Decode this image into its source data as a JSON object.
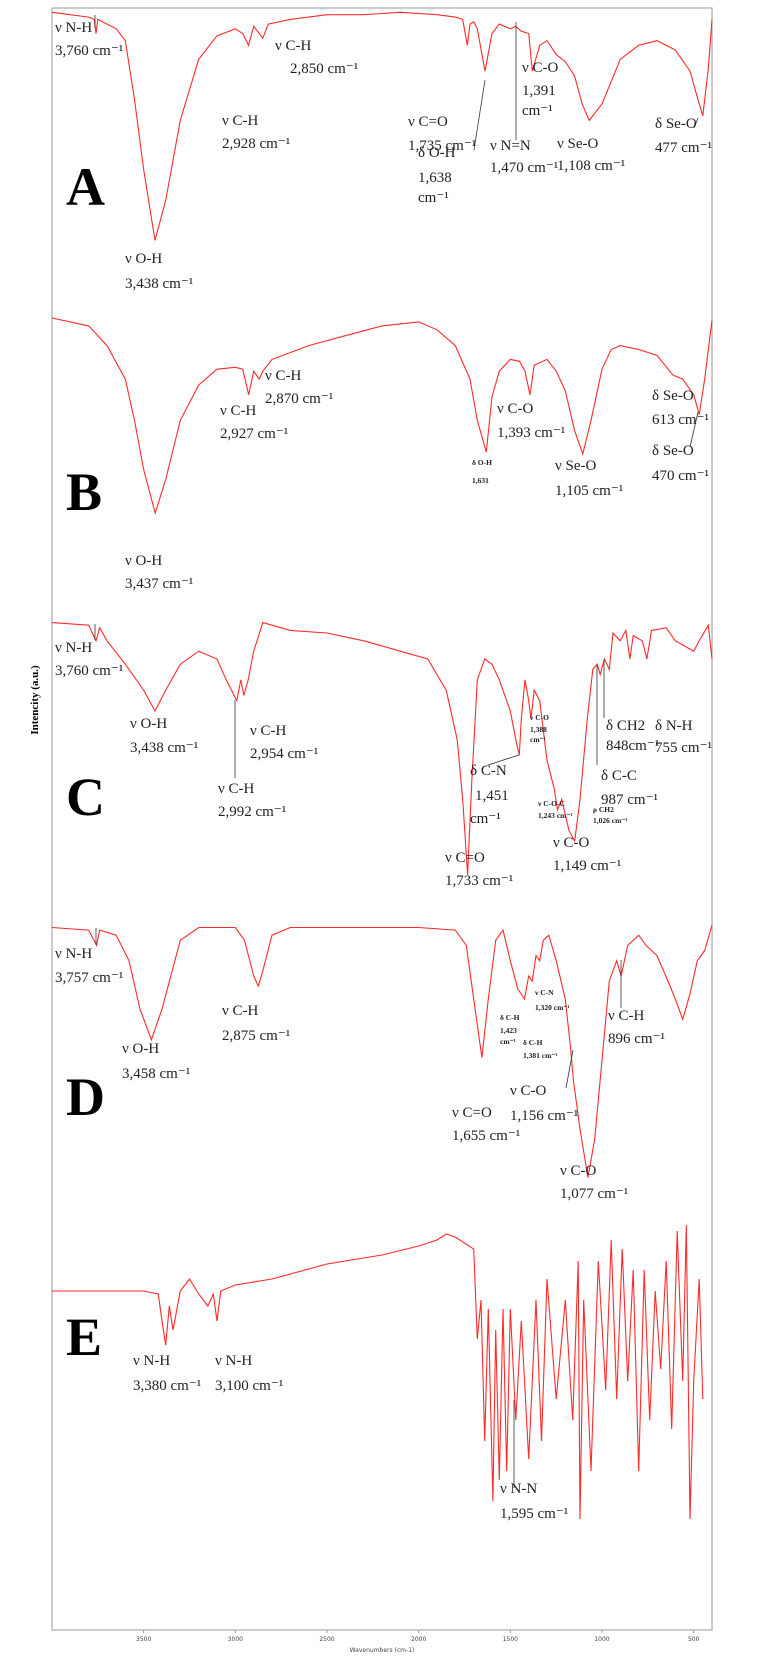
{
  "chart_data": {
    "type": "line",
    "xlabel": "Wavenumbers (cm-1)",
    "ylabel": "Intencity (a.u.)",
    "xlim": [
      4000,
      400
    ],
    "xticks": [
      3500,
      3000,
      2500,
      2000,
      1500,
      1000,
      500
    ],
    "ylim": [
      0,
      100
    ],
    "series": [
      {
        "name": "A",
        "color": "#ff2a2a",
        "x": [
          4000,
          3800,
          3770,
          3760,
          3750,
          3650,
          3600,
          3550,
          3500,
          3438,
          3380,
          3300,
          3200,
          3100,
          3000,
          2960,
          2928,
          2900,
          2870,
          2850,
          2820,
          2700,
          2500,
          2300,
          2100,
          1900,
          1800,
          1760,
          1735,
          1720,
          1700,
          1680,
          1638,
          1600,
          1560,
          1500,
          1470,
          1440,
          1400,
          1391,
          1380,
          1340,
          1300,
          1250,
          1200,
          1150,
          1108,
          1070,
          1000,
          900,
          800,
          700,
          600,
          520,
          477,
          450,
          420,
          400
        ],
        "values": [
          99,
          97,
          96,
          90,
          96,
          92,
          87,
          62,
          32,
          2,
          19,
          53,
          79,
          89,
          92,
          90,
          85,
          93,
          90,
          88,
          94,
          96,
          98,
          98,
          99,
          98,
          97,
          96,
          85,
          94,
          95,
          92,
          74,
          90,
          94,
          92,
          93,
          91,
          90,
          83,
          74,
          85,
          87,
          81,
          78,
          72,
          60,
          53,
          60,
          79,
          85,
          87,
          83,
          74,
          62,
          55,
          75,
          96
        ],
        "annotations": [
          [
            "ν N-H",
            "3,760 cm⁻¹"
          ],
          [
            "ν O-H",
            "3,438 cm⁻¹"
          ],
          [
            "ν C-H",
            "2,928 cm⁻¹"
          ],
          [
            "ν C-H",
            "2,850 cm⁻¹"
          ],
          [
            "ν C=O",
            "1,735 cm⁻¹"
          ],
          [
            "δ O-H",
            "1,638",
            "cm⁻¹"
          ],
          [
            "ν N=N",
            "1,470 cm⁻¹"
          ],
          [
            "ν C-O",
            "1,391",
            "cm⁻¹"
          ],
          [
            "ν Se-O",
            "1,108 cm⁻¹"
          ],
          [
            "δ Se-O",
            "477 cm⁻¹"
          ]
        ]
      },
      {
        "name": "B",
        "color": "#ff2a2a",
        "x": [
          4000,
          3800,
          3700,
          3600,
          3550,
          3500,
          3437,
          3380,
          3300,
          3200,
          3100,
          3000,
          2960,
          2927,
          2900,
          2870,
          2850,
          2800,
          2600,
          2400,
          2200,
          2000,
          1900,
          1800,
          1720,
          1680,
          1631,
          1600,
          1560,
          1500,
          1450,
          1420,
          1393,
          1370,
          1300,
          1250,
          1200,
          1150,
          1105,
          1060,
          1000,
          950,
          900,
          800,
          700,
          613,
          560,
          500,
          470,
          440,
          400
        ],
        "values": [
          100,
          96,
          86,
          69,
          48,
          23,
          1,
          18,
          48,
          66,
          74,
          75,
          74,
          61,
          73,
          69,
          73,
          79,
          86,
          91,
          96,
          98,
          94,
          86,
          69,
          48,
          32,
          60,
          73,
          79,
          78,
          73,
          61,
          76,
          79,
          73,
          63,
          43,
          31,
          48,
          74,
          84,
          86,
          84,
          81,
          71,
          69,
          61,
          51,
          69,
          99
        ],
        "annotations": [
          [
            "ν O-H",
            "3,437 cm⁻¹"
          ],
          [
            "ν C-H",
            "2,927 cm⁻¹"
          ],
          [
            "ν C-H",
            "2,870 cm⁻¹"
          ],
          [
            "δ O-H",
            "1,631"
          ],
          [
            "ν C-O",
            "1,393 cm⁻¹"
          ],
          [
            "ν Se-O",
            "1,105 cm⁻¹"
          ],
          [
            "δ Se-O",
            "613 cm⁻¹"
          ],
          [
            "δ Se-O",
            "470 cm⁻¹"
          ]
        ]
      },
      {
        "name": "C",
        "color": "#ff2a2a",
        "x": [
          4000,
          3800,
          3760,
          3740,
          3700,
          3600,
          3500,
          3438,
          3380,
          3300,
          3200,
          3100,
          3050,
          2992,
          2970,
          2954,
          2930,
          2900,
          2850,
          2700,
          2500,
          2300,
          2100,
          1950,
          1850,
          1790,
          1760,
          1733,
          1710,
          1680,
          1640,
          1600,
          1560,
          1500,
          1470,
          1451,
          1440,
          1420,
          1400,
          1388,
          1370,
          1340,
          1300,
          1260,
          1243,
          1220,
          1180,
          1149,
          1120,
          1080,
          1050,
          1026,
          1010,
          987,
          960,
          940,
          900,
          870,
          848,
          830,
          780,
          755,
          730,
          650,
          600,
          550,
          500,
          470,
          420,
          400
        ],
        "values": [
          99,
          98,
          92,
          97,
          92,
          83,
          73,
          65,
          73,
          83,
          88,
          85,
          77,
          69,
          77,
          71,
          77,
          88,
          99,
          96,
          95,
          92,
          88,
          85,
          73,
          54,
          31,
          2,
          38,
          77,
          85,
          83,
          77,
          65,
          54,
          48,
          62,
          77,
          69,
          62,
          73,
          69,
          46,
          35,
          27,
          31,
          19,
          15,
          31,
          62,
          81,
          83,
          79,
          85,
          81,
          95,
          92,
          96,
          85,
          94,
          92,
          85,
          96,
          97,
          92,
          90,
          88,
          92,
          98,
          85
        ],
        "annotations": [
          [
            "ν N-H",
            "3,760 cm⁻¹"
          ],
          [
            "ν O-H",
            "3,438 cm⁻¹"
          ],
          [
            "ν C-H",
            "2,992 cm⁻¹"
          ],
          [
            "ν C-H",
            "2,954 cm⁻¹"
          ],
          [
            "δ C-N",
            "1,451",
            "cm⁻¹"
          ],
          [
            "ν C-O",
            "1,388",
            "cm⁻¹"
          ],
          [
            "ν C=O",
            "1,733 cm⁻¹"
          ],
          [
            "ν C-O-C",
            "1,243 cm⁻¹"
          ],
          [
            "ν C-O",
            "1,149 cm⁻¹"
          ],
          [
            "ρ CH2",
            "1,026 cm⁻¹"
          ],
          [
            "δ C-C",
            "987 cm⁻¹"
          ],
          [
            "δ CH2",
            "848cm⁻¹"
          ],
          [
            "δ N-H",
            "755 cm⁻¹"
          ]
        ]
      },
      {
        "name": "D",
        "color": "#ff2a2a",
        "x": [
          4000,
          3800,
          3757,
          3740,
          3650,
          3580,
          3520,
          3458,
          3400,
          3300,
          3200,
          3000,
          2950,
          2900,
          2875,
          2850,
          2800,
          2700,
          2400,
          2000,
          1800,
          1740,
          1700,
          1655,
          1620,
          1580,
          1540,
          1500,
          1460,
          1423,
          1400,
          1381,
          1360,
          1340,
          1320,
          1290,
          1250,
          1200,
          1170,
          1156,
          1120,
          1077,
          1040,
          1000,
          960,
          920,
          896,
          860,
          800,
          760,
          700,
          640,
          600,
          560,
          520,
          480,
          440,
          400
        ],
        "values": [
          99,
          98,
          92,
          98,
          96,
          86,
          67,
          55,
          67,
          94,
          99,
          99,
          94,
          80,
          76,
          82,
          96,
          99,
          99,
          99,
          98,
          92,
          71,
          48,
          71,
          94,
          98,
          86,
          75,
          71,
          80,
          78,
          88,
          86,
          94,
          96,
          86,
          71,
          51,
          39,
          20,
          1,
          16,
          47,
          78,
          86,
          80,
          92,
          96,
          92,
          88,
          78,
          71,
          63,
          73,
          86,
          90,
          100
        ],
        "annotations": [
          [
            "ν N-H",
            "3,757 cm⁻¹"
          ],
          [
            "ν O-H",
            "3,458 cm⁻¹"
          ],
          [
            "ν C-H",
            "2,875 cm⁻¹"
          ],
          [
            "δ C-H",
            "1,423",
            "cm⁻¹"
          ],
          [
            "ν C-N",
            "1,320 cm⁻¹"
          ],
          [
            "δ C-H",
            "1,381 cm⁻¹"
          ],
          [
            "ν C=O",
            "1,655 cm⁻¹"
          ],
          [
            "ν C-O",
            "1,156 cm⁻¹"
          ],
          [
            "ν C-O",
            "1,077 cm⁻¹"
          ],
          [
            "ν C-H",
            "896 cm⁻¹"
          ]
        ]
      },
      {
        "name": "E",
        "color": "#ff2a2a",
        "x": [
          4000,
          3600,
          3500,
          3420,
          3400,
          3380,
          3360,
          3340,
          3300,
          3250,
          3200,
          3150,
          3120,
          3100,
          3080,
          3000,
          2800,
          2500,
          2200,
          2000,
          1900,
          1850,
          1800,
          1700,
          1680,
          1660,
          1640,
          1620,
          1595,
          1580,
          1560,
          1540,
          1520,
          1500,
          1470,
          1440,
          1400,
          1360,
          1330,
          1300,
          1250,
          1200,
          1160,
          1130,
          1120,
          1100,
          1060,
          1020,
          980,
          950,
          920,
          890,
          860,
          830,
          800,
          770,
          740,
          710,
          680,
          650,
          620,
          590,
          560,
          540,
          520,
          500,
          470,
          450
        ],
        "values": [
          78,
          78,
          78,
          77,
          68,
          60,
          73,
          65,
          78,
          82,
          77,
          73,
          77,
          68,
          78,
          80,
          82,
          87,
          90,
          93,
          95,
          97,
          96,
          92,
          62,
          75,
          28,
          72,
          8,
          65,
          15,
          72,
          18,
          72,
          35,
          68,
          22,
          75,
          28,
          82,
          42,
          75,
          35,
          88,
          2,
          75,
          18,
          88,
          45,
          95,
          42,
          92,
          48,
          85,
          18,
          85,
          35,
          78,
          52,
          88,
          32,
          98,
          48,
          100,
          2,
          48,
          82,
          42
        ],
        "annotations": [
          [
            "ν N-H",
            "3,380 cm⁻¹"
          ],
          [
            "ν N-H",
            "3,100 cm⁻¹"
          ],
          [
            "ν N-N",
            "1,595 cm⁻¹"
          ]
        ]
      }
    ]
  }
}
